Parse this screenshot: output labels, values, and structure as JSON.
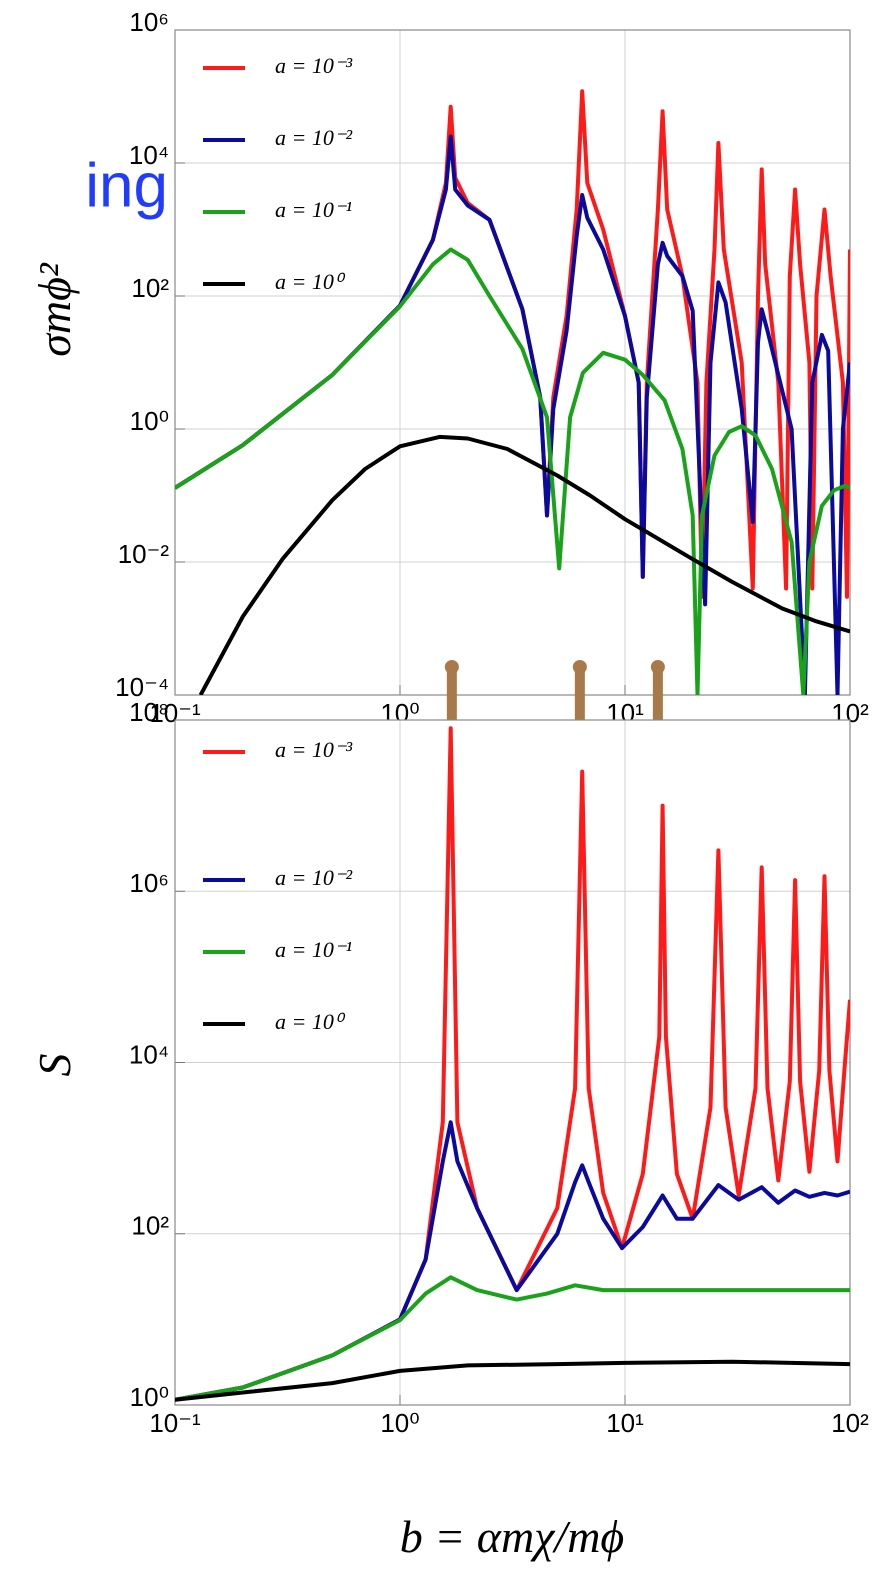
{
  "annotation": "ing",
  "chart_data": [
    {
      "type": "line",
      "ylabel": "σmϕ²",
      "log_x": true,
      "log_y": true,
      "grid": true,
      "legend": "upper left",
      "xlim": [
        0.1,
        100
      ],
      "xticks": [
        {
          "value": 0.1,
          "label": "10⁻¹"
        },
        {
          "value": 1,
          "label": "10⁰"
        },
        {
          "value": 10,
          "label": "10¹"
        },
        {
          "value": 100,
          "label": "10²"
        }
      ],
      "ylim": [
        0.0001,
        1000000
      ],
      "yticks": [
        {
          "value": 0.0001,
          "label": "10⁻⁴"
        },
        {
          "value": 0.01,
          "label": "10⁻²"
        },
        {
          "value": 1,
          "label": "10⁰"
        },
        {
          "value": 100,
          "label": "10²"
        },
        {
          "value": 10000,
          "label": "10⁴"
        },
        {
          "value": 1000000,
          "label": "10⁶"
        }
      ],
      "markers": {
        "x": [
          1.7,
          6.3,
          14
        ],
        "color": "#a87a4a"
      },
      "series": [
        {
          "name": "a = 10⁻³",
          "color": "#ff1a1a",
          "x": [
            0.1,
            0.2,
            0.5,
            1,
            1.4,
            1.6,
            1.68,
            1.76,
            2,
            2.5,
            3.5,
            4.2,
            4.5,
            4.8,
            5.5,
            6.1,
            6.45,
            6.8,
            8,
            10,
            11.5,
            12,
            12.5,
            14,
            14.7,
            15.4,
            18,
            21,
            22,
            23,
            25,
            26,
            27.5,
            33,
            37,
            39,
            40.5,
            42,
            48,
            52,
            54,
            57,
            60,
            66,
            68,
            71,
            77,
            82,
            93,
            97,
            100
          ],
          "values": [
            0.13,
            0.57,
            6.5,
            72,
            700,
            5000,
            70000,
            6000,
            2500,
            1400,
            63,
            3,
            0.05,
            3,
            50,
            2000,
            120000,
            5000,
            1000,
            50,
            5,
            0.006,
            5,
            2000,
            60000,
            2000,
            200,
            5,
            0.003,
            5,
            500,
            20000,
            500,
            10,
            0.004,
            100,
            8000,
            300,
            5,
            0.004,
            200,
            4000,
            300,
            10,
            0.004,
            100,
            2000,
            200,
            5,
            0.003,
            500
          ]
        },
        {
          "name": "a = 10⁻²",
          "color": "#0a0a9c",
          "x": [
            0.1,
            0.2,
            0.5,
            1,
            1.4,
            1.6,
            1.68,
            1.76,
            2,
            2.5,
            3.5,
            4.2,
            4.5,
            4.8,
            5.5,
            6.1,
            6.45,
            6.8,
            8,
            10,
            11.5,
            12,
            12.5,
            14,
            14.7,
            15.4,
            18,
            20,
            22.7,
            24,
            26,
            28,
            33,
            37,
            39,
            40.5,
            43,
            55,
            63,
            68,
            75,
            80,
            88,
            93,
            100
          ],
          "values": [
            0.13,
            0.57,
            6.5,
            72,
            700,
            4000,
            25000,
            4000,
            2300,
            1400,
            63,
            3,
            0.05,
            2,
            30,
            800,
            3300,
            1500,
            500,
            50,
            5,
            0.006,
            3,
            300,
            630,
            400,
            200,
            60,
            0.0023,
            10,
            160,
            80,
            2,
            0.04,
            20,
            63,
            30,
            1,
            0.0001,
            5,
            26,
            15,
            0.0001,
            1,
            10
          ]
        },
        {
          "name": "a = 10⁻¹",
          "color": "#1aa31a",
          "x": [
            0.1,
            0.2,
            0.5,
            1,
            1.4,
            1.68,
            2,
            2.5,
            3.5,
            4.5,
            5.1,
            5.7,
            6.5,
            8,
            10,
            12,
            15,
            18,
            20,
            21,
            22,
            25,
            29,
            33,
            38,
            45,
            55,
            62,
            66,
            75,
            85,
            95,
            100
          ],
          "values": [
            0.13,
            0.57,
            6.5,
            70,
            300,
            500,
            350,
            100,
            16,
            1.5,
            0.008,
            1.5,
            7,
            14,
            11,
            6.5,
            2.7,
            0.5,
            0.05,
            0.0001,
            0.05,
            0.4,
            0.9,
            1.1,
            0.8,
            0.25,
            0.02,
            0.0001,
            0.01,
            0.07,
            0.12,
            0.14,
            0.13
          ]
        },
        {
          "name": "a = 10⁰",
          "color": "#000000",
          "x": [
            0.13,
            0.2,
            0.3,
            0.5,
            0.7,
            1,
            1.5,
            2,
            3,
            5,
            7,
            10,
            20,
            30,
            50,
            70,
            100
          ],
          "values": [
            0.0001,
            0.0015,
            0.011,
            0.085,
            0.25,
            0.55,
            0.76,
            0.72,
            0.5,
            0.2,
            0.1,
            0.044,
            0.011,
            0.005,
            0.002,
            0.0013,
            0.0009
          ]
        }
      ]
    },
    {
      "type": "line",
      "ylabel": "S",
      "xlabel": "b = αmχ/mϕ",
      "log_x": true,
      "log_y": true,
      "grid": true,
      "legend": "upper left",
      "xlim": [
        0.1,
        100
      ],
      "xticks": [
        {
          "value": 0.1,
          "label": "10⁻¹"
        },
        {
          "value": 1,
          "label": "10⁰"
        },
        {
          "value": 10,
          "label": "10¹"
        },
        {
          "value": 100,
          "label": "10²"
        }
      ],
      "ylim": [
        1,
        100000000
      ],
      "yticks": [
        {
          "value": 1,
          "label": "10⁰"
        },
        {
          "value": 100,
          "label": "10²"
        },
        {
          "value": 10000,
          "label": "10⁴"
        },
        {
          "value": 1000000,
          "label": "10⁶"
        },
        {
          "value": 100000000,
          "label": "10⁸"
        }
      ],
      "series": [
        {
          "name": "a = 10⁻³",
          "color": "#ff1a1a",
          "x": [
            0.1,
            0.2,
            0.5,
            1,
            1.3,
            1.55,
            1.68,
            1.8,
            2.2,
            3.3,
            5,
            6,
            6.45,
            6.9,
            8,
            9.7,
            12,
            14.2,
            14.7,
            15.2,
            17,
            20,
            24,
            26,
            28,
            32,
            38,
            40.5,
            43,
            48,
            54,
            57,
            60,
            66,
            73,
            77,
            81,
            88,
            95,
            100
          ],
          "values": [
            1.15,
            1.6,
            3.8,
            10,
            50,
            2000,
            80000000,
            2000,
            200,
            22,
            200,
            5000,
            25000000,
            5000,
            300,
            68,
            500,
            20000,
            10000000,
            20000,
            500,
            150,
            3000,
            3000000,
            3000,
            280,
            5000,
            1900000,
            5000,
            420,
            6000,
            1350000,
            6000,
            530,
            8000,
            1500000,
            8000,
            700,
            10000,
            54000
          ]
        },
        {
          "name": "a = 10⁻²",
          "color": "#0a0a9c",
          "x": [
            0.1,
            0.2,
            0.5,
            1,
            1.3,
            1.55,
            1.68,
            1.8,
            2.2,
            3.3,
            5,
            6,
            6.45,
            6.9,
            8,
            9.7,
            12,
            14.7,
            17,
            20,
            26,
            32,
            40.5,
            48,
            57,
            66,
            77,
            88,
            100
          ],
          "values": [
            1.15,
            1.6,
            3.8,
            10,
            50,
            700,
            2000,
            700,
            200,
            22,
            100,
            400,
            630,
            400,
            150,
            68,
            120,
            280,
            150,
            150,
            370,
            250,
            350,
            230,
            320,
            270,
            300,
            280,
            310
          ]
        },
        {
          "name": "a = 10⁻¹",
          "color": "#1aa31a",
          "x": [
            0.1,
            0.2,
            0.5,
            1,
            1.3,
            1.68,
            2.2,
            3.3,
            4.5,
            6,
            8,
            10,
            20,
            50,
            100
          ],
          "values": [
            1.15,
            1.6,
            3.8,
            9.8,
            20,
            31,
            22,
            17,
            20,
            25,
            22,
            22,
            22,
            22,
            22
          ]
        },
        {
          "name": "a = 10⁰",
          "color": "#000000",
          "x": [
            0.1,
            0.2,
            0.5,
            1,
            2,
            5,
            10,
            30,
            100
          ],
          "values": [
            1.15,
            1.4,
            1.8,
            2.5,
            2.9,
            3.0,
            3.1,
            3.2,
            3.0
          ]
        }
      ]
    }
  ]
}
